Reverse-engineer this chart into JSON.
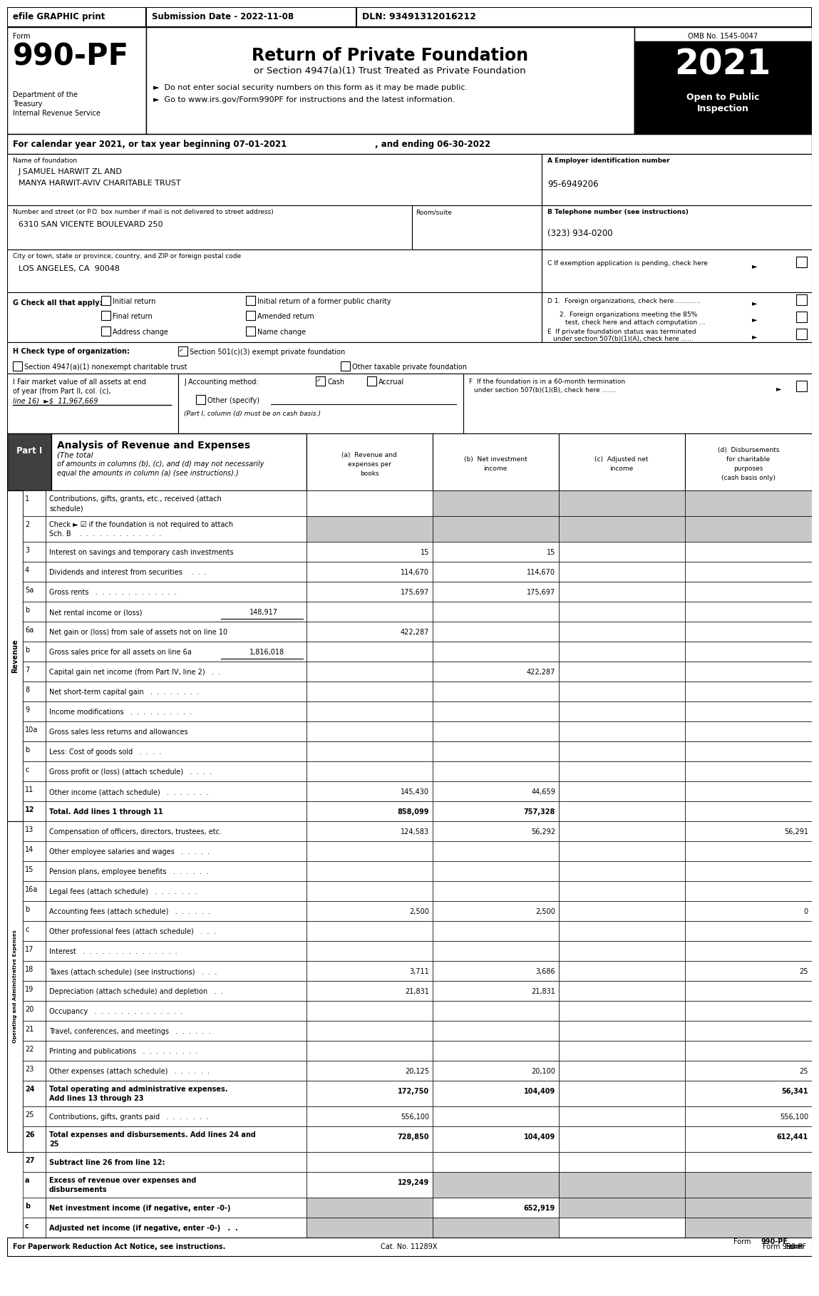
{
  "top_bar": {
    "efile": "efile GRAPHIC print",
    "submission": "Submission Date - 2022-11-08",
    "dln": "DLN: 93491312016212"
  },
  "header": {
    "form_label": "Form",
    "form_number": "990-PF",
    "title": "Return of Private Foundation",
    "subtitle": "or Section 4947(a)(1) Trust Treated as Private Foundation",
    "bullet1": "►  Do not enter social security numbers on this form as it may be made public.",
    "bullet2": "►  Go to www.irs.gov/Form990PF for instructions and the latest information.",
    "dept1": "Department of the",
    "dept2": "Treasury",
    "dept3": "Internal Revenue Service",
    "omb": "OMB No. 1545-0047",
    "year": "2021",
    "open": "Open to Public",
    "inspection": "Inspection"
  },
  "revenue_rows": [
    {
      "num": "1",
      "label": "Contributions, gifts, grants, etc., received (attach\nschedule)",
      "a": "",
      "b": "",
      "c": "",
      "d": "",
      "shaded": [
        "b",
        "c",
        "d"
      ]
    },
    {
      "num": "2",
      "label": "Check ► ☑ if the foundation is not required to attach\nSch. B    .  .  .  .  .  .  .  .  .  .  .  .  .",
      "a": "",
      "b": "",
      "c": "",
      "d": "",
      "shaded": [
        "a",
        "b",
        "c",
        "d"
      ]
    },
    {
      "num": "3",
      "label": "Interest on savings and temporary cash investments",
      "a": "15",
      "b": "15",
      "c": "",
      "d": ""
    },
    {
      "num": "4",
      "label": "Dividends and interest from securities    .  .  .",
      "a": "114,670",
      "b": "114,670",
      "c": "",
      "d": ""
    },
    {
      "num": "5a",
      "label": "Gross rents   .  .  .  .  .  .  .  .  .  .  .  .  .",
      "a": "175,697",
      "b": "175,697",
      "c": "",
      "d": ""
    },
    {
      "num": "b",
      "label": "Net rental income or (loss)",
      "b_note": "148,917",
      "a": "",
      "b": "",
      "c": "",
      "d": ""
    },
    {
      "num": "6a",
      "label": "Net gain or (loss) from sale of assets not on line 10",
      "a": "422,287",
      "b": "",
      "c": "",
      "d": ""
    },
    {
      "num": "b",
      "label": "Gross sales price for all assets on line 6a",
      "b_note": "1,816,018",
      "a": "",
      "b": "",
      "c": "",
      "d": ""
    },
    {
      "num": "7",
      "label": "Capital gain net income (from Part IV, line 2)   .  .",
      "a": "",
      "b": "422,287",
      "c": "",
      "d": ""
    },
    {
      "num": "8",
      "label": "Net short-term capital gain   .  .  .  .  .  .  .  .",
      "a": "",
      "b": "",
      "c": "",
      "d": ""
    },
    {
      "num": "9",
      "label": "Income modifications   .  .  .  .  .  .  .  .  .  .",
      "a": "",
      "b": "",
      "c": "",
      "d": ""
    },
    {
      "num": "10a",
      "label": "Gross sales less returns and allowances",
      "a": "",
      "b": "",
      "c": "",
      "d": ""
    },
    {
      "num": "b",
      "label": "Less: Cost of goods sold   .  .  .  .",
      "a": "",
      "b": "",
      "c": "",
      "d": ""
    },
    {
      "num": "c",
      "label": "Gross profit or (loss) (attach schedule)   .  .  .  .",
      "a": "",
      "b": "",
      "c": "",
      "d": ""
    },
    {
      "num": "11",
      "label": "Other income (attach schedule)   .  .  .  .  .  .  .",
      "a": "145,430",
      "b": "44,659",
      "c": "",
      "d": ""
    },
    {
      "num": "12",
      "label": "Total. Add lines 1 through 11",
      "a": "858,099",
      "b": "757,328",
      "c": "",
      "d": "",
      "bold": true
    }
  ],
  "expense_rows": [
    {
      "num": "13",
      "label": "Compensation of officers, directors, trustees, etc.",
      "a": "124,583",
      "b": "56,292",
      "c": "",
      "d": "56,291"
    },
    {
      "num": "14",
      "label": "Other employee salaries and wages   .  .  .  .  .",
      "a": "",
      "b": "",
      "c": "",
      "d": ""
    },
    {
      "num": "15",
      "label": "Pension plans, employee benefits   .  .  .  .  .  .",
      "a": "",
      "b": "",
      "c": "",
      "d": ""
    },
    {
      "num": "16a",
      "label": "Legal fees (attach schedule)   .  .  .  .  .  .  .",
      "a": "",
      "b": "",
      "c": "",
      "d": ""
    },
    {
      "num": "b",
      "label": "Accounting fees (attach schedule)   .  .  .  .  .  .",
      "a": "2,500",
      "b": "2,500",
      "c": "",
      "d": "0"
    },
    {
      "num": "c",
      "label": "Other professional fees (attach schedule)   .  .  .",
      "a": "",
      "b": "",
      "c": "",
      "d": ""
    },
    {
      "num": "17",
      "label": "Interest   .  .  .  .  .  .  .  .  .  .  .  .  .  .  .",
      "a": "",
      "b": "",
      "c": "",
      "d": ""
    },
    {
      "num": "18",
      "label": "Taxes (attach schedule) (see instructions)   .  .  .",
      "a": "3,711",
      "b": "3,686",
      "c": "",
      "d": "25"
    },
    {
      "num": "19",
      "label": "Depreciation (attach schedule) and depletion   .  .",
      "a": "21,831",
      "b": "21,831",
      "c": "",
      "d": ""
    },
    {
      "num": "20",
      "label": "Occupancy   .  .  .  .  .  .  .  .  .  .  .  .  .  .",
      "a": "",
      "b": "",
      "c": "",
      "d": ""
    },
    {
      "num": "21",
      "label": "Travel, conferences, and meetings   .  .  .  .  .  .",
      "a": "",
      "b": "",
      "c": "",
      "d": ""
    },
    {
      "num": "22",
      "label": "Printing and publications   .  .  .  .  .  .  .  .  .",
      "a": "",
      "b": "",
      "c": "",
      "d": ""
    },
    {
      "num": "23",
      "label": "Other expenses (attach schedule)   .  .  .  .  .  .",
      "a": "20,125",
      "b": "20,100",
      "c": "",
      "d": "25"
    },
    {
      "num": "24",
      "label": "Total operating and administrative expenses.\nAdd lines 13 through 23",
      "a": "172,750",
      "b": "104,409",
      "c": "",
      "d": "56,341",
      "bold": true
    },
    {
      "num": "25",
      "label": "Contributions, gifts, grants paid   .  .  .  .  .  .  .",
      "a": "556,100",
      "b": "",
      "c": "",
      "d": "556,100"
    },
    {
      "num": "26",
      "label": "Total expenses and disbursements. Add lines 24 and\n25",
      "a": "728,850",
      "b": "104,409",
      "c": "",
      "d": "612,441",
      "bold": true
    }
  ],
  "bottom_rows": [
    {
      "num": "27",
      "label": "Subtract line 26 from line 12:",
      "a": "",
      "b": "",
      "c": "",
      "d": "",
      "header": true
    },
    {
      "num": "a",
      "label": "Excess of revenue over expenses and\ndisbursements",
      "a": "129,249",
      "b": "",
      "c": "",
      "d": "",
      "bold": true,
      "shaded": [
        "b",
        "c",
        "d"
      ]
    },
    {
      "num": "b",
      "label": "Net investment income (if negative, enter -0-)",
      "a": "",
      "b": "652,919",
      "c": "",
      "d": "",
      "bold": true,
      "shaded": [
        "a",
        "c",
        "d"
      ]
    },
    {
      "num": "c",
      "label": "Adjusted net income (if negative, enter -0-)   .  .",
      "a": "",
      "b": "",
      "c": "",
      "d": "",
      "bold": true,
      "shaded": [
        "a",
        "b",
        "d"
      ]
    }
  ],
  "footer": {
    "left": "For Paperwork Reduction Act Notice, see instructions.",
    "center": "Cat. No. 11289X",
    "right": "Form 990-PF (2021)"
  }
}
